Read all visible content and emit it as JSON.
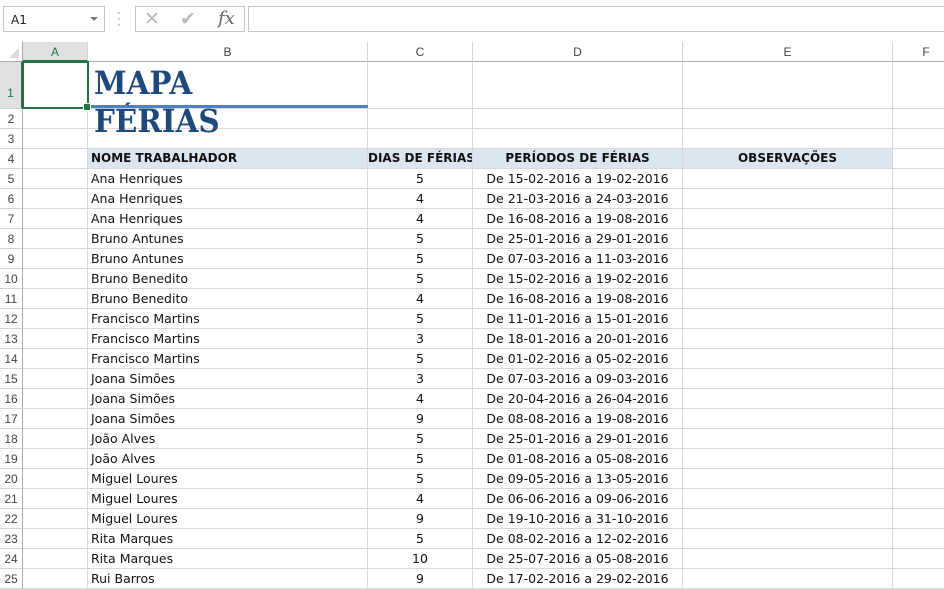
{
  "formula_bar": {
    "name_box": "A1",
    "cancel_icon": "x-icon",
    "enter_icon": "check-icon",
    "function_label": "fx",
    "formula": ""
  },
  "columns": [
    "A",
    "B",
    "C",
    "D",
    "E",
    "F"
  ],
  "selected_cell": "A1",
  "title": "MAPA FÉRIAS",
  "headers": [
    "NOME TRABALHADOR",
    "DIAS DE FÉRIAS",
    "PERÍODOS DE FÉRIAS",
    "OBSERVAÇÕES"
  ],
  "rows": [
    {
      "name": "Ana Henriques",
      "days": "5",
      "period": "De 15-02-2016 a 19-02-2016"
    },
    {
      "name": "Ana Henriques",
      "days": "4",
      "period": "De 21-03-2016 a 24-03-2016"
    },
    {
      "name": "Ana Henriques",
      "days": "4",
      "period": "De 16-08-2016 a 19-08-2016"
    },
    {
      "name": "Bruno Antunes",
      "days": "5",
      "period": "De 25-01-2016 a 29-01-2016"
    },
    {
      "name": "Bruno Antunes",
      "days": "5",
      "period": "De 07-03-2016 a 11-03-2016"
    },
    {
      "name": "Bruno Benedito",
      "days": "5",
      "period": "De 15-02-2016 a 19-02-2016"
    },
    {
      "name": "Bruno Benedito",
      "days": "4",
      "period": "De 16-08-2016 a 19-08-2016"
    },
    {
      "name": "Francisco Martins",
      "days": "5",
      "period": "De 11-01-2016 a 15-01-2016"
    },
    {
      "name": "Francisco Martins",
      "days": "3",
      "period": "De 18-01-2016 a 20-01-2016"
    },
    {
      "name": "Francisco Martins",
      "days": "5",
      "period": "De 01-02-2016 a 05-02-2016"
    },
    {
      "name": "Joana Simões",
      "days": "3",
      "period": "De 07-03-2016 a 09-03-2016"
    },
    {
      "name": "Joana Simões",
      "days": "4",
      "period": "De 20-04-2016 a 26-04-2016"
    },
    {
      "name": "Joana Simões",
      "days": "9",
      "period": "De 08-08-2016 a 19-08-2016"
    },
    {
      "name": "João Alves",
      "days": "5",
      "period": "De 25-01-2016 a 29-01-2016"
    },
    {
      "name": "João Alves",
      "days": "5",
      "period": "De 01-08-2016 a 05-08-2016"
    },
    {
      "name": "Miguel Loures",
      "days": "5",
      "period": "De 09-05-2016 a 13-05-2016"
    },
    {
      "name": "Miguel Loures",
      "days": "4",
      "period": "De 06-06-2016 a 09-06-2016"
    },
    {
      "name": "Miguel Loures",
      "days": "9",
      "period": "De 19-10-2016 a 31-10-2016"
    },
    {
      "name": "Rita Marques",
      "days": "5",
      "period": "De 08-02-2016 a 12-02-2016"
    },
    {
      "name": "Rita Marques",
      "days": "10",
      "period": "De 25-07-2016 a 05-08-2016"
    },
    {
      "name": "Rui Barros",
      "days": "9",
      "period": "De 17-02-2016 a 29-02-2016"
    }
  ]
}
